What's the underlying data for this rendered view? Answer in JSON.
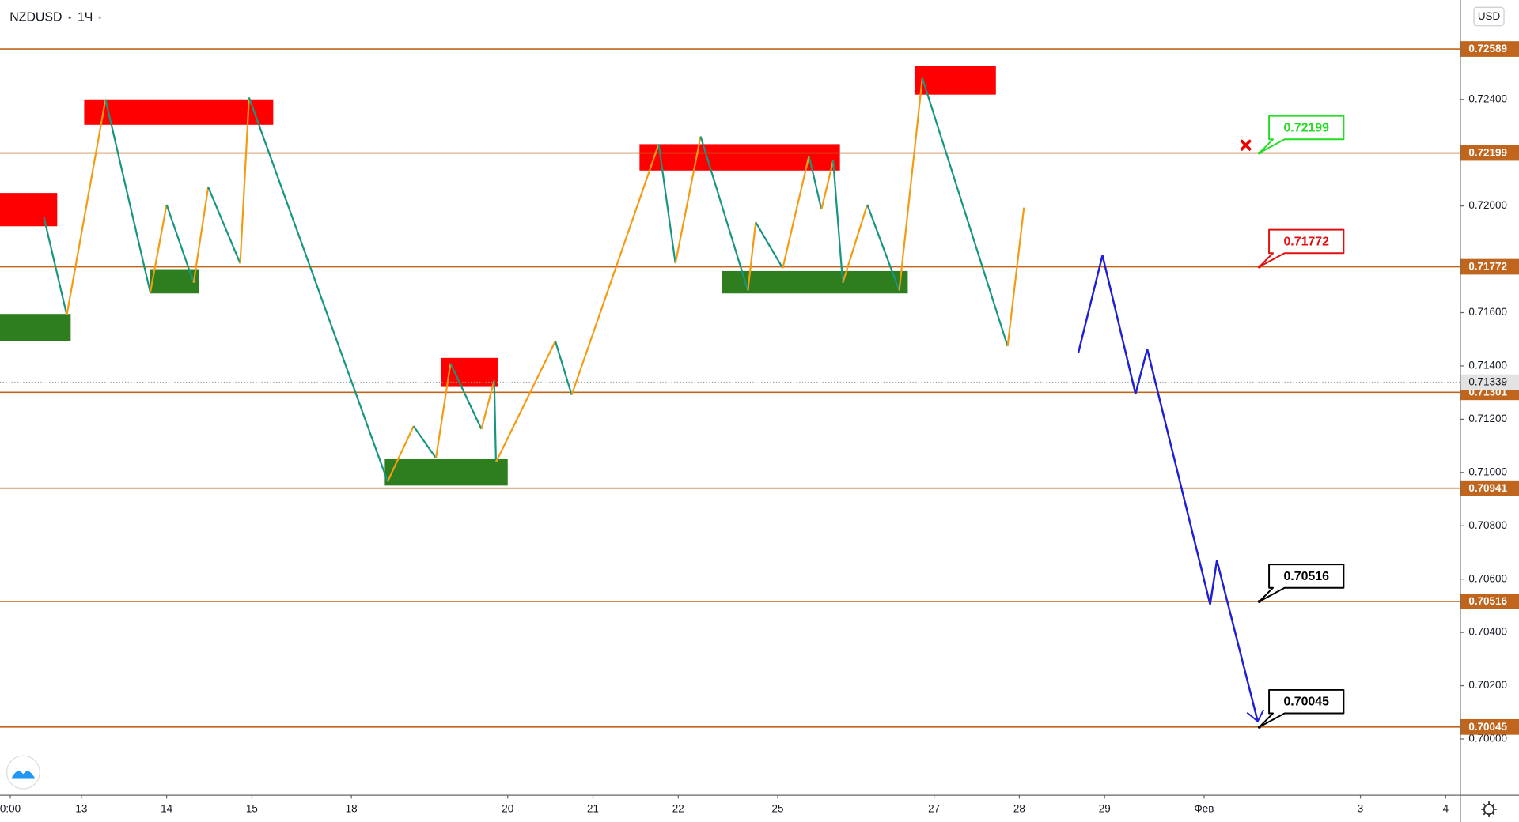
{
  "chart_data": {
    "type": "line",
    "title": "NZDUSD",
    "interval": "1Ч",
    "currency": "USD",
    "xlim": [
      -22.9,
      388.0
    ],
    "ylim": [
      0.69791,
      0.72773
    ],
    "xticks": [
      {
        "value": -20,
        "label": "0:00"
      },
      {
        "value": 0,
        "label": "13"
      },
      {
        "value": 24,
        "label": "14"
      },
      {
        "value": 48,
        "label": "15"
      },
      {
        "value": 76,
        "label": "18"
      },
      {
        "value": 120,
        "label": "20"
      },
      {
        "value": 144,
        "label": "21"
      },
      {
        "value": 168,
        "label": "22"
      },
      {
        "value": 196,
        "label": "25"
      },
      {
        "value": 240,
        "label": "27"
      },
      {
        "value": 264,
        "label": "28"
      },
      {
        "value": 288,
        "label": "29"
      },
      {
        "value": 316,
        "label": "Фев"
      },
      {
        "value": 360,
        "label": "3"
      },
      {
        "value": 384,
        "label": "4"
      }
    ],
    "yticks": [
      {
        "value": 0.7,
        "label": "0.70000"
      },
      {
        "value": 0.702,
        "label": "0.70200"
      },
      {
        "value": 0.704,
        "label": "0.70400"
      },
      {
        "value": 0.706,
        "label": "0.70600"
      },
      {
        "value": 0.708,
        "label": "0.70800"
      },
      {
        "value": 0.71,
        "label": "0.71000"
      },
      {
        "value": 0.712,
        "label": "0.71200"
      },
      {
        "value": 0.714,
        "label": "0.71400"
      },
      {
        "value": 0.716,
        "label": "0.71600"
      },
      {
        "value": 0.72,
        "label": "0.72000"
      },
      {
        "value": 0.724,
        "label": "0.72400"
      }
    ],
    "levels": [
      0.72589,
      0.72199,
      0.71772,
      0.71301,
      0.70941,
      0.70516,
      0.70045
    ],
    "level_color": "#c0651d",
    "last_price": 0.71339,
    "zigzag": {
      "up_color": "#f39c12",
      "down_color": "#16967f",
      "x": [
        -10.6,
        -4.1,
        6.8,
        19.4,
        24.0,
        31.6,
        35.7,
        44.7,
        47.2,
        86.2,
        93.5,
        99.8,
        103.9,
        112.6,
        116.2,
        116.7,
        133.4,
        138.0,
        162.5,
        167.2,
        174.3,
        187.6,
        189.8,
        197.4,
        204.8,
        208.3,
        211.6,
        214.3,
        221.2,
        230.2,
        236.7,
        260.7,
        265.3
      ],
      "values": [
        0.71961,
        0.71591,
        0.724,
        0.71676,
        0.72005,
        0.71712,
        0.72071,
        0.71785,
        0.72407,
        0.70966,
        0.71174,
        0.71054,
        0.71409,
        0.71163,
        0.71346,
        0.71039,
        0.71493,
        0.71291,
        0.72232,
        0.71785,
        0.72261,
        0.71683,
        0.71939,
        0.71767,
        0.72188,
        0.71987,
        0.7217,
        0.71712,
        0.72005,
        0.71683,
        0.7248,
        0.71474,
        0.71994
      ]
    },
    "projection": {
      "color": "#1f1fd6",
      "x": [
        280.6,
        287.4,
        296.7,
        300.0,
        317.7,
        319.6,
        331.1
      ],
      "values": [
        0.71449,
        0.71815,
        0.71295,
        0.71463,
        0.70505,
        0.7067,
        0.70066
      ]
    },
    "zones": [
      {
        "x": [
          -22.9,
          -6.8
        ],
        "y": [
          0.72049,
          0.71924
        ],
        "color": "#ff0000"
      },
      {
        "x": [
          0.8,
          54.0
        ],
        "y": [
          0.724,
          0.72305
        ],
        "color": "#ff0000"
      },
      {
        "x": [
          101.2,
          117.3
        ],
        "y": [
          0.7143,
          0.71321
        ],
        "color": "#ff0000"
      },
      {
        "x": [
          157.1,
          213.5
        ],
        "y": [
          0.72232,
          0.72133
        ],
        "color": "#ff0000"
      },
      {
        "x": [
          234.5,
          257.4
        ],
        "y": [
          0.72524,
          0.72418
        ],
        "color": "#ff0000"
      },
      {
        "x": [
          -22.9,
          -3.0
        ],
        "y": [
          0.71595,
          0.71493
        ],
        "color": "#2e7d1e"
      },
      {
        "x": [
          19.4,
          33.0
        ],
        "y": [
          0.71763,
          0.71672
        ],
        "color": "#2e7d1e"
      },
      {
        "x": [
          85.4,
          120.0
        ],
        "y": [
          0.7105,
          0.70951
        ],
        "color": "#2e7d1e"
      },
      {
        "x": [
          180.3,
          232.6
        ],
        "y": [
          0.71756,
          0.71672
        ],
        "color": "#2e7d1e"
      }
    ],
    "callouts": [
      {
        "value": 0.72199,
        "color": "#22dd22"
      },
      {
        "value": 0.71772,
        "color": "#e01010"
      },
      {
        "value": 0.70516,
        "color": "#000000"
      },
      {
        "value": 0.70045,
        "color": "#000000"
      }
    ]
  }
}
